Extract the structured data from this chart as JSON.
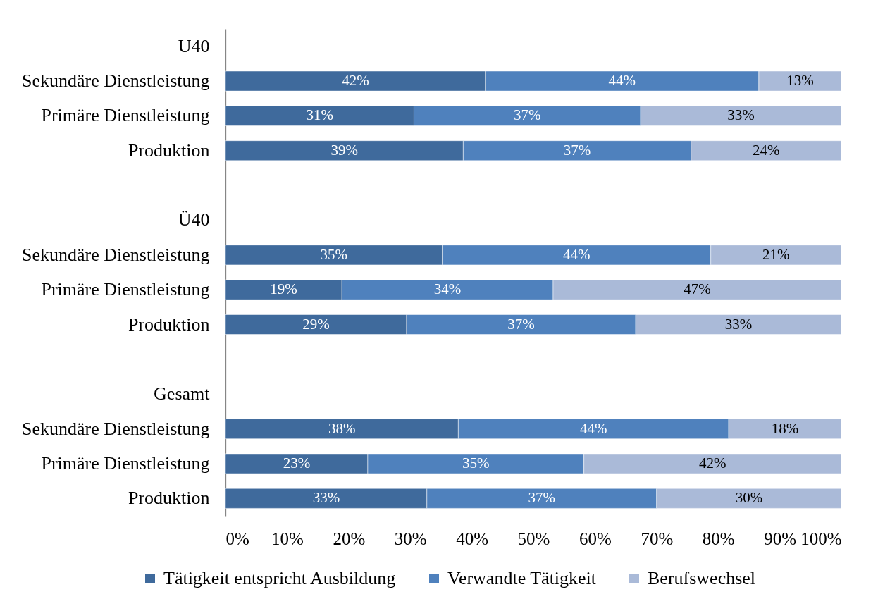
{
  "chart_data": {
    "type": "bar",
    "orientation": "horizontal",
    "stacked": true,
    "categories": [
      "U40",
      "Sekundäre Dienstleistung",
      "Primäre Dienstleistung",
      "Produktion",
      null,
      "Ü40",
      "Sekundäre Dienstleistung",
      "Primäre Dienstleistung",
      "Produktion",
      null,
      "Gesamt",
      "Sekundäre Dienstleistung",
      "Primäre Dienstleistung",
      "Produktion"
    ],
    "series": [
      {
        "name": "Tätigkeit entspricht Ausbildung",
        "color": "#3f6a9c",
        "values": [
          null,
          42.2,
          30.6,
          38.6,
          null,
          null,
          35.2,
          18.9,
          29.4,
          null,
          null,
          37.8,
          23.1,
          32.7
        ],
        "value_labels": [
          null,
          "42%",
          "31%",
          "39%",
          null,
          null,
          "35%",
          "19%",
          "29%",
          null,
          null,
          "38%",
          "23%",
          "33%"
        ]
      },
      {
        "name": "Verwandte Tätigkeit",
        "color": "#4f81bd",
        "values": [
          null,
          44.4,
          36.8,
          37.0,
          null,
          null,
          43.6,
          34.3,
          37.2,
          null,
          null,
          43.9,
          35.1,
          37.3
        ],
        "value_labels": [
          null,
          "44%",
          "37%",
          "37%",
          null,
          null,
          "44%",
          "34%",
          "37%",
          null,
          null,
          "44%",
          "35%",
          "37%"
        ]
      },
      {
        "name": "Berufswechsel",
        "color": "#aabad8",
        "values": [
          null,
          13.4,
          32.6,
          24.4,
          null,
          null,
          21.2,
          46.8,
          33.4,
          null,
          null,
          18.3,
          41.8,
          30.0
        ],
        "value_labels": [
          null,
          "13%",
          "33%",
          "24%",
          null,
          null,
          "21%",
          "47%",
          "33%",
          null,
          null,
          "18%",
          "42%",
          "30%"
        ]
      }
    ],
    "xlim": [
      0,
      100
    ],
    "xticks": [
      {
        "value": 0,
        "label": "0%"
      },
      {
        "value": 10,
        "label": "10%"
      },
      {
        "value": 20,
        "label": "20%"
      },
      {
        "value": 30,
        "label": "30%"
      },
      {
        "value": 40,
        "label": "40%"
      },
      {
        "value": 50,
        "label": "50%"
      },
      {
        "value": 60,
        "label": "60%"
      },
      {
        "value": 70,
        "label": "70%"
      },
      {
        "value": 80,
        "label": "80%"
      },
      {
        "value": 90,
        "label": "90%"
      },
      {
        "value": 100,
        "label": "100%"
      }
    ],
    "grid": false,
    "legend": "bottom"
  }
}
